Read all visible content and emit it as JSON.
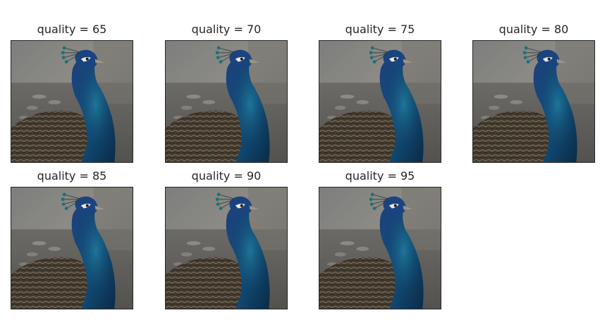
{
  "panels": [
    {
      "title": "quality = 65"
    },
    {
      "title": "quality = 70"
    },
    {
      "title": "quality = 75"
    },
    {
      "title": "quality = 80"
    },
    {
      "title": "quality = 85"
    },
    {
      "title": "quality = 90"
    },
    {
      "title": "quality = 95"
    }
  ],
  "colors": {
    "title_text": "#262626",
    "frame": "#262626",
    "background": "#ffffff"
  }
}
